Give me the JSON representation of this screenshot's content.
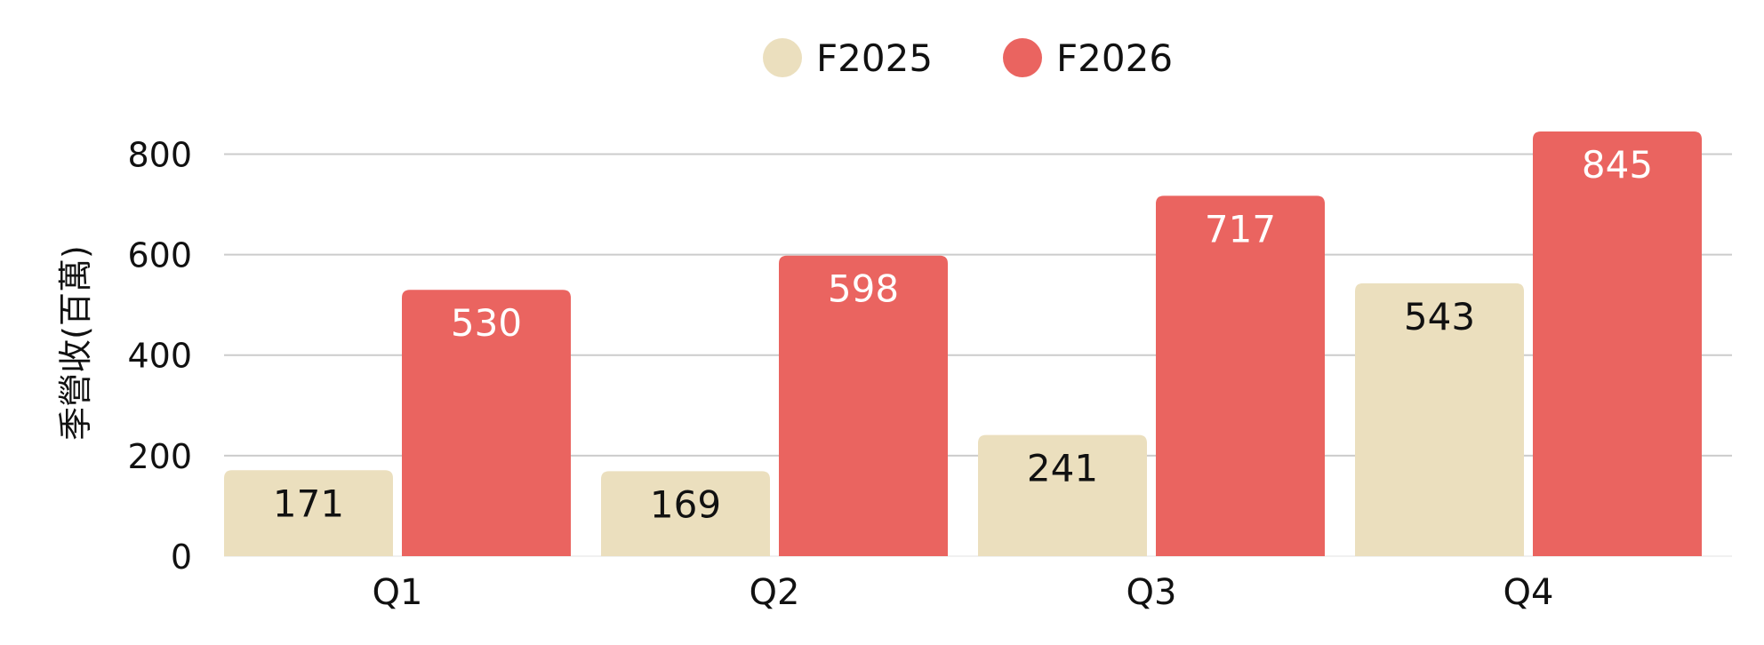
{
  "chart_data": {
    "type": "bar",
    "title": "",
    "xlabel": "",
    "ylabel": "季營收(百萬)",
    "categories": [
      "Q1",
      "Q2",
      "Q3",
      "Q4"
    ],
    "series": [
      {
        "name": "F2025",
        "values": [
          171,
          169,
          241,
          543
        ],
        "color": "#ebdfbe",
        "label_color": "#111111"
      },
      {
        "name": "F2026",
        "values": [
          530,
          598,
          717,
          845
        ],
        "color": "#ea6460",
        "label_color": "#ffffff"
      }
    ],
    "ylim": [
      0,
      845
    ],
    "yticks": [
      0,
      200,
      400,
      600,
      800
    ],
    "grid": true,
    "legend_position": "top-center",
    "colors": {
      "grid": "#cccccc",
      "text": "#111111"
    }
  }
}
